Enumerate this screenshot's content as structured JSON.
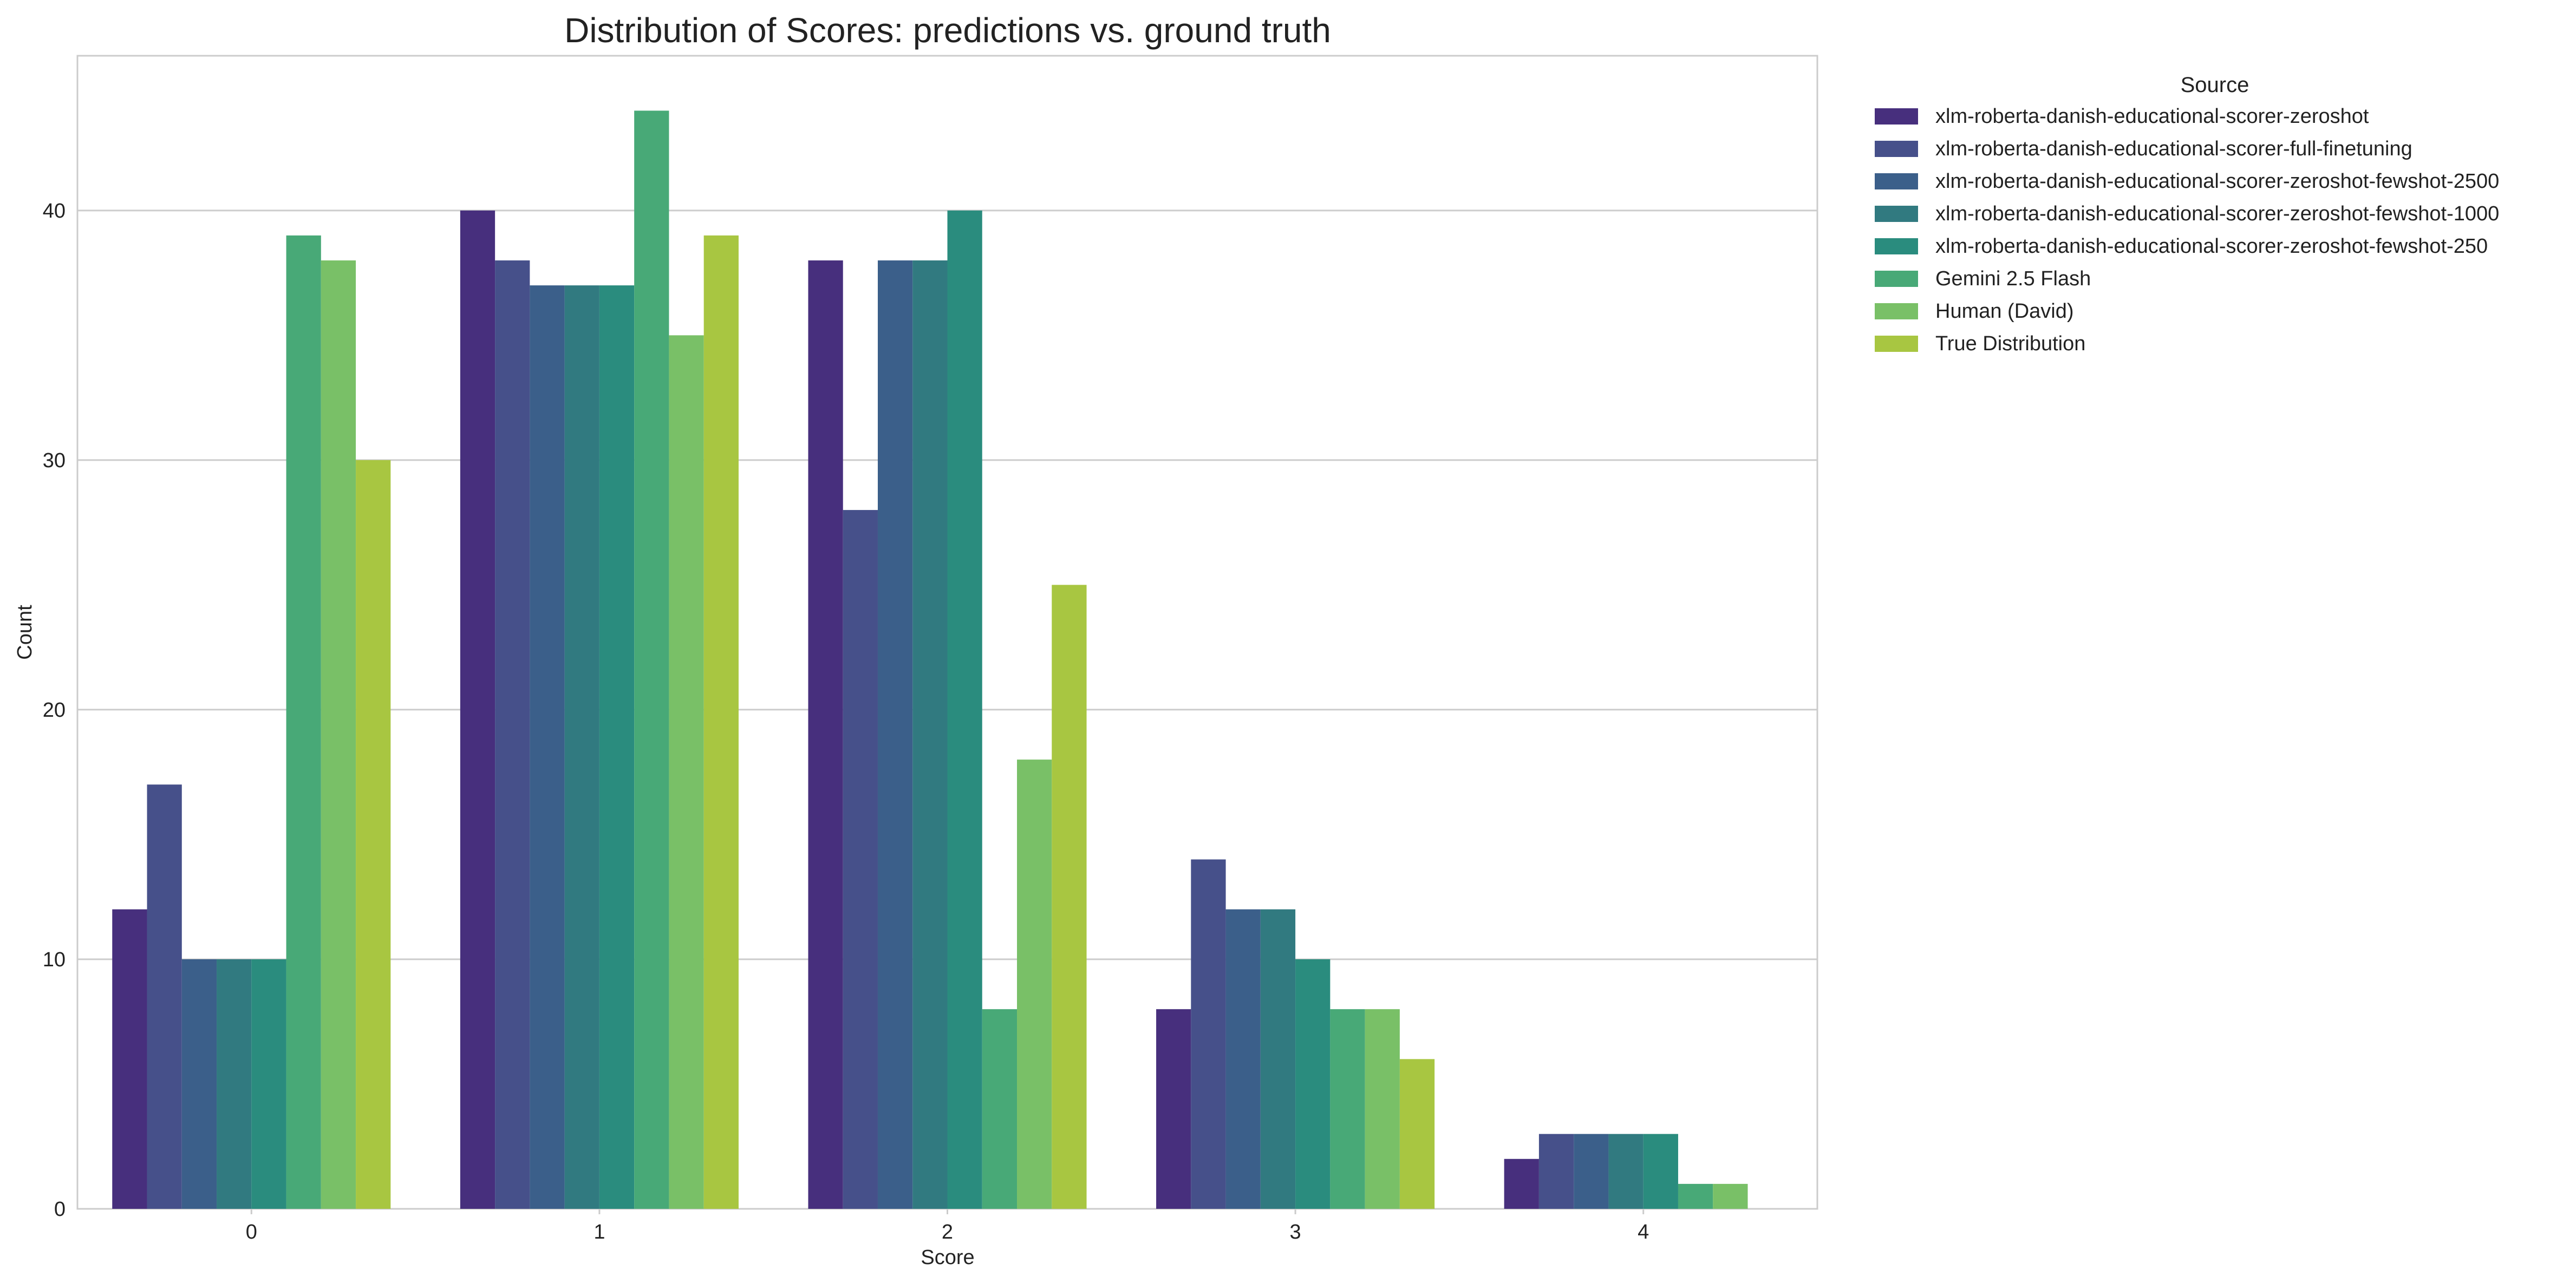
{
  "chart_data": {
    "type": "bar",
    "title": "Distribution of Scores: predictions vs. ground truth",
    "xlabel": "Score",
    "ylabel": "Count",
    "categories": [
      "0",
      "1",
      "2",
      "3",
      "4"
    ],
    "ylim": [
      0,
      46.2
    ],
    "yticks": [
      0,
      10,
      20,
      30,
      40
    ],
    "grid": "horizontal",
    "legend": {
      "title": "Source",
      "placement": "outside-top-right"
    },
    "series": [
      {
        "name": "xlm-roberta-danish-educational-scorer-zeroshot",
        "color": "#472f7d",
        "values": [
          12,
          40,
          38,
          8,
          2
        ]
      },
      {
        "name": "xlm-roberta-danish-educational-scorer-full-finetuning",
        "color": "#46508a",
        "values": [
          17,
          38,
          28,
          14,
          3
        ]
      },
      {
        "name": "xlm-roberta-danish-educational-scorer-zeroshot-fewshot-2500",
        "color": "#3b5f8a",
        "values": [
          10,
          37,
          38,
          12,
          3
        ]
      },
      {
        "name": "xlm-roberta-danish-educational-scorer-zeroshot-fewshot-1000",
        "color": "#317a80",
        "values": [
          10,
          37,
          38,
          12,
          3
        ]
      },
      {
        "name": "xlm-roberta-danish-educational-scorer-zeroshot-fewshot-250",
        "color": "#2a8c7e",
        "values": [
          10,
          37,
          40,
          10,
          3
        ]
      },
      {
        "name": "Gemini 2.5 Flash",
        "color": "#48a977",
        "values": [
          39,
          44,
          8,
          8,
          1
        ]
      },
      {
        "name": "Human (David)",
        "color": "#79c067",
        "values": [
          38,
          35,
          18,
          8,
          1
        ]
      },
      {
        "name": "True Distribution",
        "color": "#a8c641",
        "values": [
          30,
          39,
          25,
          6,
          0
        ]
      }
    ]
  }
}
